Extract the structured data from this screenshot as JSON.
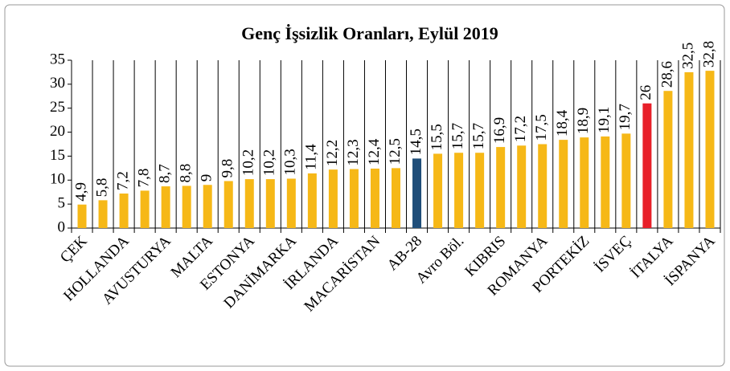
{
  "chart_data": {
    "type": "bar",
    "title": "Genç İşsizlik Oranları, Eylül 2019",
    "categories": [
      "ÇEK",
      null,
      "HOLLANDA",
      null,
      "AVUSTURYA",
      null,
      "MALTA",
      null,
      "ESTONYA",
      null,
      "DANİMARKA",
      null,
      "İRLANDA",
      null,
      "MACARİSTAN",
      null,
      "AB-28",
      null,
      "Avro Böl.",
      null,
      "KIBRIS",
      null,
      "ROMANYA",
      null,
      "PORTEKİZ",
      null,
      "İSVEÇ",
      null,
      "İTALYA",
      null,
      "İSPANYA"
    ],
    "values": [
      4.9,
      5.8,
      7.2,
      7.8,
      8.7,
      8.8,
      9,
      9.8,
      10.2,
      10.2,
      10.3,
      11.4,
      12.2,
      12.3,
      12.4,
      12.5,
      14.5,
      15.5,
      15.7,
      15.7,
      16.9,
      17.2,
      17.5,
      18.4,
      18.9,
      19.1,
      19.7,
      26,
      28.6,
      32.5,
      32.8
    ],
    "value_labels": [
      "4,9",
      "5,8",
      "7,2",
      "7,8",
      "8,7",
      "8,8",
      "9",
      "9,8",
      "10,2",
      "10,2",
      "10,3",
      "11,4",
      "12,2",
      "12,3",
      "12,4",
      "12,5",
      "14,5",
      "15,5",
      "15,7",
      "15,7",
      "16,9",
      "17,2",
      "17,5",
      "18,4",
      "18,9",
      "19,1",
      "19,7",
      "26",
      "28,6",
      "32,5",
      "32,8"
    ],
    "colors": [
      "#f6b817",
      "#f6b817",
      "#f6b817",
      "#f6b817",
      "#f6b817",
      "#f6b817",
      "#f6b817",
      "#f6b817",
      "#f6b817",
      "#f6b817",
      "#f6b817",
      "#f6b817",
      "#f6b817",
      "#f6b817",
      "#f6b817",
      "#f6b817",
      "#1f4e79",
      "#f6b817",
      "#f6b817",
      "#f6b817",
      "#f6b817",
      "#f6b817",
      "#f6b817",
      "#f6b817",
      "#f6b817",
      "#f6b817",
      "#f6b817",
      "#e8202a",
      "#f6b817",
      "#f6b817",
      "#f6b817"
    ],
    "ylim": [
      0,
      35
    ],
    "yticks": [
      0,
      5,
      10,
      15,
      20,
      25,
      30,
      35
    ]
  }
}
